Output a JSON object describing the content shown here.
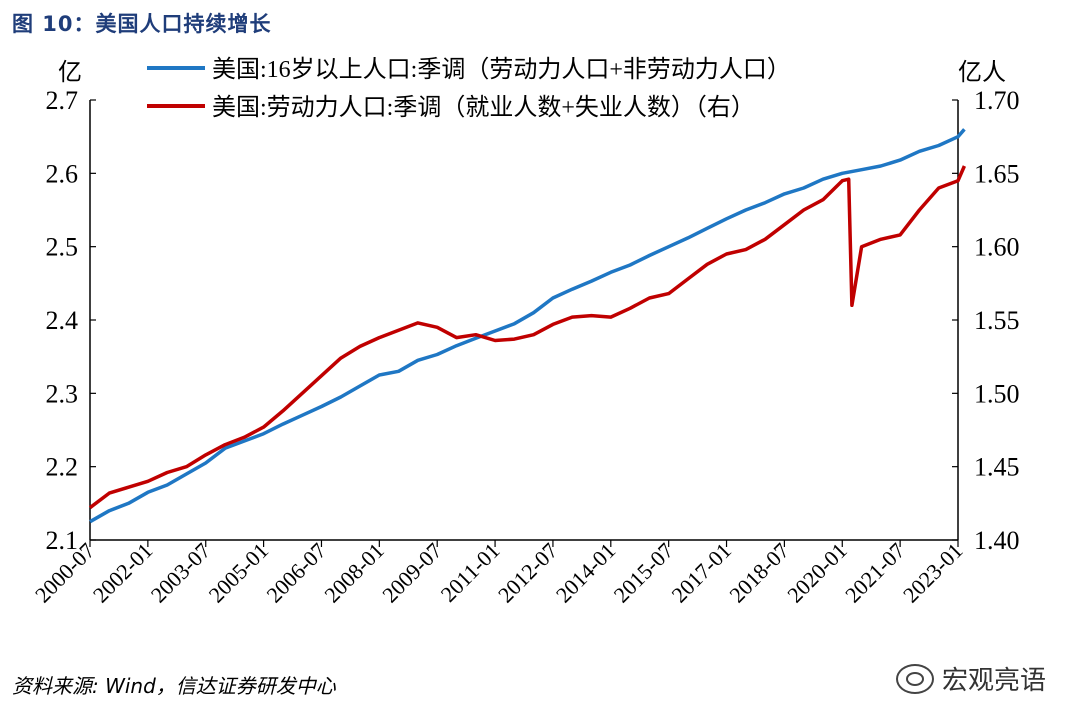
{
  "header": {
    "title": "图 10：美国人口持续增长"
  },
  "footer": {
    "source": "资料来源: Wind，信达证券研发中心",
    "watermark": "宏观亮语"
  },
  "chart_data": {
    "type": "line",
    "legend_position": "top",
    "y_left": {
      "unit": "亿",
      "lim": [
        2.1,
        2.7
      ],
      "ticks": [
        "2.1",
        "2.2",
        "2.3",
        "2.4",
        "2.5",
        "2.6",
        "2.7"
      ]
    },
    "y_right": {
      "unit": "亿人",
      "lim": [
        1.4,
        1.7
      ],
      "ticks": [
        "1.40",
        "1.45",
        "1.50",
        "1.55",
        "1.60",
        "1.65",
        "1.70"
      ]
    },
    "x_ticks": [
      "2000-07",
      "2002-01",
      "2003-07",
      "2005-01",
      "2006-07",
      "2008-01",
      "2009-07",
      "2011-01",
      "2012-07",
      "2014-01",
      "2015-07",
      "2017-01",
      "2018-07",
      "2020-01",
      "2021-07",
      "2023-01"
    ],
    "series": [
      {
        "name": "美国:16岁以上人口:季调（劳动力人口+非劳动力人口）",
        "axis": "left",
        "color": "#1f77c4",
        "points": [
          [
            "2000-07",
            2.125
          ],
          [
            "2001-01",
            2.14
          ],
          [
            "2001-07",
            2.15
          ],
          [
            "2002-01",
            2.165
          ],
          [
            "2002-07",
            2.175
          ],
          [
            "2003-01",
            2.19
          ],
          [
            "2003-07",
            2.205
          ],
          [
            "2004-01",
            2.225
          ],
          [
            "2004-07",
            2.235
          ],
          [
            "2005-01",
            2.245
          ],
          [
            "2005-07",
            2.258
          ],
          [
            "2006-01",
            2.27
          ],
          [
            "2006-07",
            2.282
          ],
          [
            "2007-01",
            2.295
          ],
          [
            "2007-07",
            2.31
          ],
          [
            "2008-01",
            2.325
          ],
          [
            "2008-07",
            2.33
          ],
          [
            "2009-01",
            2.345
          ],
          [
            "2009-07",
            2.353
          ],
          [
            "2010-01",
            2.365
          ],
          [
            "2010-07",
            2.375
          ],
          [
            "2011-01",
            2.385
          ],
          [
            "2011-07",
            2.395
          ],
          [
            "2012-01",
            2.41
          ],
          [
            "2012-07",
            2.43
          ],
          [
            "2013-01",
            2.442
          ],
          [
            "2013-07",
            2.453
          ],
          [
            "2014-01",
            2.465
          ],
          [
            "2014-07",
            2.475
          ],
          [
            "2015-01",
            2.488
          ],
          [
            "2015-07",
            2.5
          ],
          [
            "2016-01",
            2.512
          ],
          [
            "2016-07",
            2.525
          ],
          [
            "2017-01",
            2.538
          ],
          [
            "2017-07",
            2.55
          ],
          [
            "2018-01",
            2.56
          ],
          [
            "2018-07",
            2.572
          ],
          [
            "2019-01",
            2.58
          ],
          [
            "2019-07",
            2.592
          ],
          [
            "2020-01",
            2.6
          ],
          [
            "2020-07",
            2.605
          ],
          [
            "2021-01",
            2.61
          ],
          [
            "2021-07",
            2.618
          ],
          [
            "2022-01",
            2.63
          ],
          [
            "2022-07",
            2.638
          ],
          [
            "2023-01",
            2.65
          ],
          [
            "2023-03",
            2.66
          ]
        ]
      },
      {
        "name": "美国:劳动力人口:季调（就业人数+失业人数）（右）",
        "axis": "right",
        "color": "#c00000",
        "points": [
          [
            "2000-07",
            1.422
          ],
          [
            "2001-01",
            1.432
          ],
          [
            "2001-07",
            1.436
          ],
          [
            "2002-01",
            1.44
          ],
          [
            "2002-07",
            1.446
          ],
          [
            "2003-01",
            1.45
          ],
          [
            "2003-07",
            1.458
          ],
          [
            "2004-01",
            1.465
          ],
          [
            "2004-07",
            1.47
          ],
          [
            "2005-01",
            1.477
          ],
          [
            "2005-07",
            1.488
          ],
          [
            "2006-01",
            1.5
          ],
          [
            "2006-07",
            1.512
          ],
          [
            "2007-01",
            1.524
          ],
          [
            "2007-07",
            1.532
          ],
          [
            "2008-01",
            1.538
          ],
          [
            "2008-07",
            1.543
          ],
          [
            "2009-01",
            1.548
          ],
          [
            "2009-07",
            1.545
          ],
          [
            "2010-01",
            1.538
          ],
          [
            "2010-07",
            1.54
          ],
          [
            "2011-01",
            1.536
          ],
          [
            "2011-07",
            1.537
          ],
          [
            "2012-01",
            1.54
          ],
          [
            "2012-07",
            1.547
          ],
          [
            "2013-01",
            1.552
          ],
          [
            "2013-07",
            1.553
          ],
          [
            "2014-01",
            1.552
          ],
          [
            "2014-07",
            1.558
          ],
          [
            "2015-01",
            1.565
          ],
          [
            "2015-07",
            1.568
          ],
          [
            "2016-01",
            1.578
          ],
          [
            "2016-07",
            1.588
          ],
          [
            "2017-01",
            1.595
          ],
          [
            "2017-07",
            1.598
          ],
          [
            "2018-01",
            1.605
          ],
          [
            "2018-07",
            1.615
          ],
          [
            "2019-01",
            1.625
          ],
          [
            "2019-07",
            1.632
          ],
          [
            "2020-01",
            1.645
          ],
          [
            "2020-03",
            1.646
          ],
          [
            "2020-04",
            1.56
          ],
          [
            "2020-07",
            1.6
          ],
          [
            "2021-01",
            1.605
          ],
          [
            "2021-07",
            1.608
          ],
          [
            "2022-01",
            1.625
          ],
          [
            "2022-07",
            1.64
          ],
          [
            "2023-01",
            1.645
          ],
          [
            "2023-03",
            1.655
          ]
        ]
      }
    ]
  }
}
